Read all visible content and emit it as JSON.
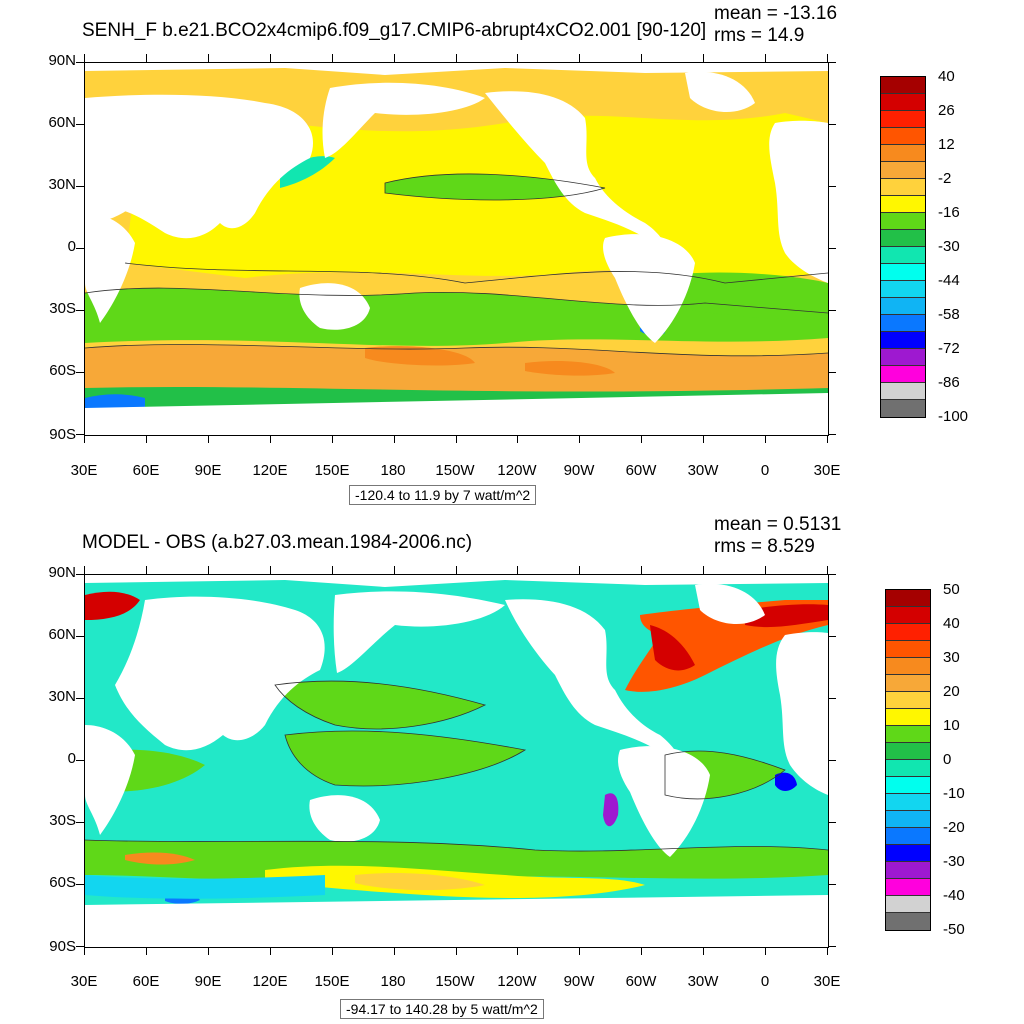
{
  "panels": [
    {
      "title": "SENH_F b.e21.BCO2x4cmip6.f09_g17.CMIP6-abrupt4xCO2.001 [90-120]",
      "mean": "mean = -13.16",
      "rms": "rms = 14.9",
      "info": "-120.4 to 11.9 by 7 watt/m^2",
      "colorbar": {
        "labels": [
          "40",
          "26",
          "12",
          "-2",
          "-16",
          "-30",
          "-44",
          "-58",
          "-72",
          "-86",
          "-100"
        ],
        "colors": [
          "#a50000",
          "#d40000",
          "#ff2000",
          "#ff5500",
          "#f78a1e",
          "#f7a838",
          "#ffd23c",
          "#fff700",
          "#5fd818",
          "#22c048",
          "#11e6b0",
          "#00ffee",
          "#12d6f0",
          "#10b4f4",
          "#0a78ff",
          "#0000ff",
          "#9e19d0",
          "#ff00dd",
          "#d2d2d2",
          "#707070"
        ]
      },
      "background_color": "#ffd23c"
    },
    {
      "title": "MODEL - OBS (a.b27.03.mean.1984-2006.nc)",
      "mean": "mean = 0.5131",
      "rms": "rms = 8.529",
      "info": "-94.17 to 140.28 by 5 watt/m^2",
      "colorbar": {
        "labels": [
          "50",
          "40",
          "30",
          "20",
          "10",
          "0",
          "-10",
          "-20",
          "-30",
          "-40",
          "-50"
        ],
        "colors": [
          "#a50000",
          "#d40000",
          "#ff2000",
          "#ff5500",
          "#f78a1e",
          "#f7a838",
          "#ffd23c",
          "#fff700",
          "#5fd818",
          "#22c048",
          "#11e6b0",
          "#00ffee",
          "#12d6f0",
          "#10b4f4",
          "#0a78ff",
          "#0000ff",
          "#9e19d0",
          "#ff00dd",
          "#d2d2d2",
          "#707070"
        ]
      },
      "background_color": "#22e8c8"
    }
  ],
  "axes": {
    "lat_labels": [
      "90N",
      "60N",
      "30N",
      "0",
      "30S",
      "60S",
      "90S"
    ],
    "lon_labels": [
      "30E",
      "60E",
      "90E",
      "120E",
      "150E",
      "180",
      "150W",
      "120W",
      "90W",
      "60W",
      "30W",
      "0",
      "30E"
    ]
  }
}
